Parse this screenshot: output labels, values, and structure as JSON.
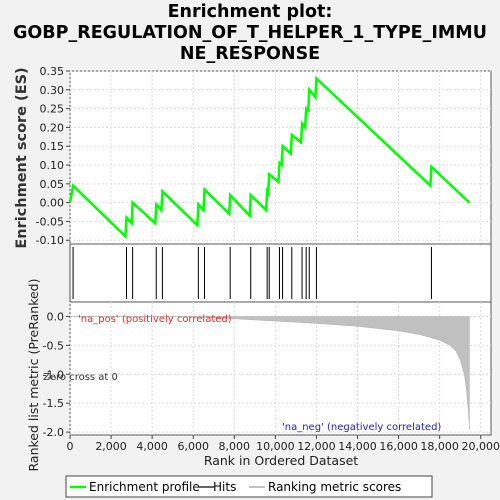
{
  "title_line1": "Enrichment plot:",
  "title_line2": "GOBP_REGULATION_OF_T_HELPER_1_TYPE_IMMU",
  "title_line3": "NE_RESPONSE",
  "top_panel": {
    "ylabel": "Enrichment score (ES)",
    "yticks": [
      "0.35",
      "0.30",
      "0.25",
      "0.20",
      "0.15",
      "0.10",
      "0.05",
      "0.00",
      "-0.05",
      "-0.10"
    ]
  },
  "bottom_panel": {
    "ylabel": "Ranked list metric (PreRanked)",
    "yticks": [
      "0.0",
      "-0.5",
      "-1.0",
      "-1.5",
      "-2.0"
    ],
    "pos_label": "'na_pos' (positively correlated)",
    "neg_label": "'na_neg' (negatively correlated)",
    "zero_cross_label": "Zero cross at 0"
  },
  "xaxis": {
    "label": "Rank in Ordered Dataset",
    "ticks": [
      "0",
      "2,000",
      "4,000",
      "6,000",
      "8,000",
      "10,000",
      "12,000",
      "14,000",
      "16,000",
      "18,000",
      "20,000"
    ]
  },
  "legend": {
    "items": [
      {
        "label": "Enrichment profile",
        "color": "#00ff00"
      },
      {
        "label": "Hits",
        "color": "#000000"
      },
      {
        "label": "Ranking metric scores",
        "color": "#c0c0c0"
      }
    ]
  },
  "chart_data": {
    "type": "line",
    "xlim": [
      0,
      20500
    ],
    "es_ylim": [
      -0.11,
      0.35
    ],
    "metric_ylim": [
      -2.05,
      0.25
    ],
    "hits": [
      150,
      2750,
      3050,
      4200,
      4500,
      6250,
      6550,
      7800,
      8800,
      9600,
      9700,
      10200,
      10350,
      10800,
      11300,
      11500,
      11650,
      12000,
      17600
    ],
    "es_profile": {
      "x": [
        0,
        150,
        2700,
        2750,
        3000,
        3050,
        4150,
        4200,
        4450,
        4500,
        6200,
        6250,
        6500,
        6550,
        7750,
        7800,
        8750,
        8800,
        9550,
        9600,
        9650,
        9700,
        10150,
        10200,
        10300,
        10350,
        10750,
        10800,
        11250,
        11300,
        11450,
        11500,
        11600,
        11650,
        11950,
        12000,
        17550,
        17600,
        19450
      ],
      "y": [
        0.0,
        0.045,
        -0.09,
        -0.04,
        -0.055,
        0.0,
        -0.055,
        -0.005,
        -0.02,
        0.03,
        -0.06,
        -0.005,
        -0.02,
        0.035,
        -0.03,
        0.02,
        -0.035,
        0.02,
        -0.02,
        0.03,
        0.025,
        0.075,
        0.055,
        0.105,
        0.1,
        0.15,
        0.13,
        0.18,
        0.16,
        0.21,
        0.2,
        0.25,
        0.245,
        0.3,
        0.28,
        0.33,
        0.045,
        0.095,
        0.0
      ]
    },
    "ranking_metric": {
      "x": [
        0,
        2000,
        4000,
        6000,
        8000,
        10000,
        12000,
        14000,
        16000,
        17000,
        18000,
        18500,
        18800,
        19000,
        19200,
        19300,
        19400,
        19450
      ],
      "y": [
        0.0,
        0.0,
        0.0,
        -0.01,
        -0.04,
        -0.08,
        -0.12,
        -0.17,
        -0.25,
        -0.31,
        -0.41,
        -0.5,
        -0.6,
        -0.75,
        -1.0,
        -1.25,
        -1.65,
        -1.95
      ]
    },
    "color_bar": [
      {
        "from": 0,
        "to": 6800,
        "color": "#d0d0f8"
      },
      {
        "from": 6800,
        "to": 8300,
        "color": "#c4c4f4"
      },
      {
        "from": 8300,
        "to": 10200,
        "color": "#b0b0f0"
      },
      {
        "from": 10200,
        "to": 12500,
        "color": "#8484ea"
      },
      {
        "from": 12500,
        "to": 18300,
        "color": "#6a5ae6"
      },
      {
        "from": 18300,
        "to": 19100,
        "color": "#3a1ad6"
      },
      {
        "from": 19100,
        "to": 19450,
        "color": "#7a12c2"
      }
    ]
  }
}
